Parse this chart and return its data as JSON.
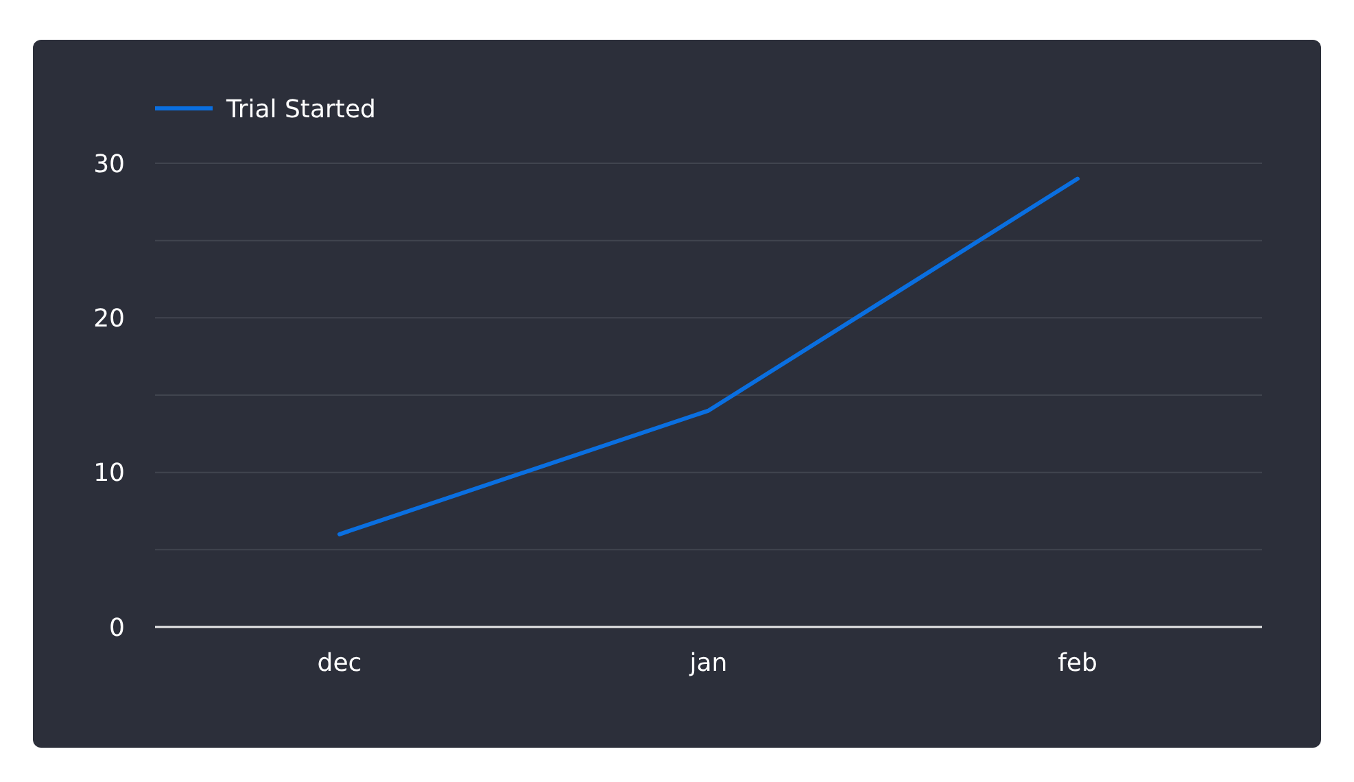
{
  "chart_data": {
    "type": "line",
    "categories": [
      "dec",
      "jan",
      "feb"
    ],
    "series": [
      {
        "name": "Trial Started",
        "color": "#0a6fe0",
        "values": [
          6,
          14,
          29
        ]
      }
    ],
    "ylim": [
      0,
      30
    ],
    "yticks": [
      0,
      {
        "value": 5,
        "label": null
      },
      10,
      {
        "value": 15,
        "label": null
      },
      20,
      {
        "value": 25,
        "label": null
      },
      30
    ],
    "grid": "y",
    "legend": "top left",
    "marker": "none",
    "line_style": "solid"
  }
}
